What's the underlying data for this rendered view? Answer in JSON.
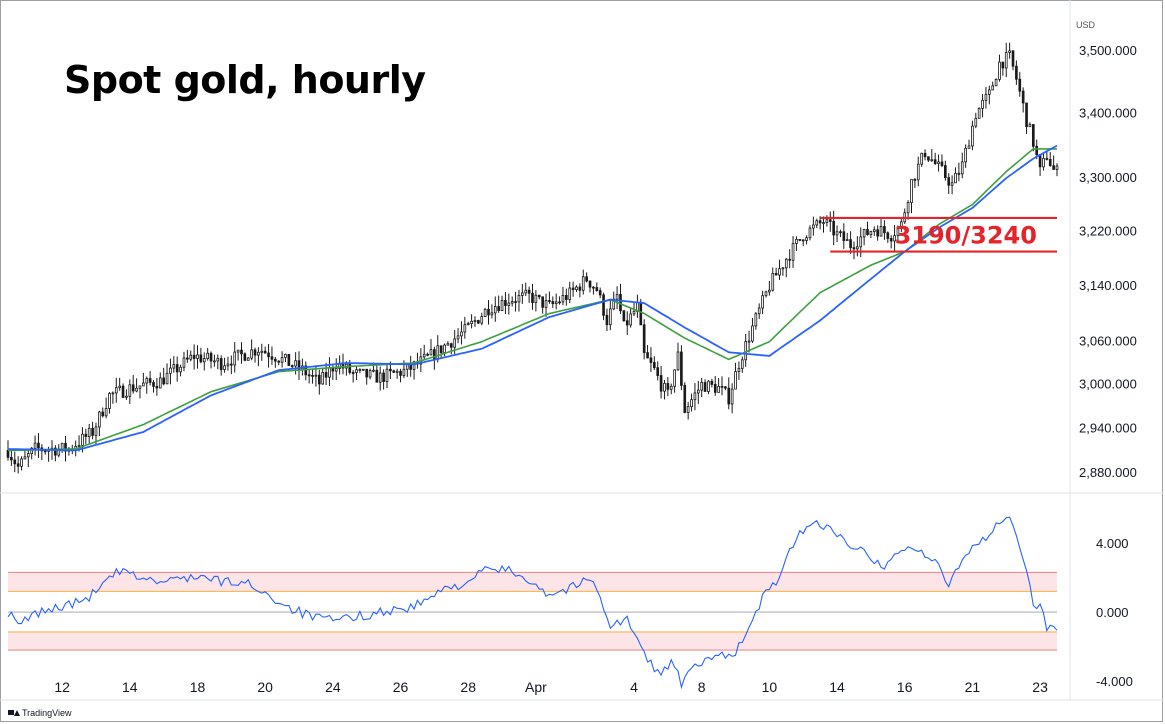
{
  "chart_data": [
    {
      "type": "candlestick",
      "title": "Spot gold, hourly",
      "unit": "USD",
      "scale": "log",
      "ylim": [
        2860,
        3560
      ],
      "y_ticks": [
        2880,
        2940,
        3000,
        3060,
        3140,
        3220,
        3300,
        3400,
        3500
      ],
      "y_tick_labels": [
        "2,880.000",
        "2,940.000",
        "3,000.000",
        "3,060.000",
        "3,140.000",
        "3,220.000",
        "3,300.000",
        "3,400.000",
        "3,500.000"
      ],
      "x_ticks": [
        {
          "label": "12",
          "bar": 16
        },
        {
          "label": "14",
          "bar": 36
        },
        {
          "label": "18",
          "bar": 56
        },
        {
          "label": "20",
          "bar": 76
        },
        {
          "label": "24",
          "bar": 96
        },
        {
          "label": "26",
          "bar": 116
        },
        {
          "label": "28",
          "bar": 136
        },
        {
          "label": "Apr",
          "bar": 156
        },
        {
          "label": "4",
          "bar": 185
        },
        {
          "label": "8",
          "bar": 205
        },
        {
          "label": "10",
          "bar": 225
        },
        {
          "label": "14",
          "bar": 245
        },
        {
          "label": "16",
          "bar": 265
        },
        {
          "label": "21",
          "bar": 285
        },
        {
          "label": "23",
          "bar": 305
        }
      ],
      "bar_count": 311,
      "price_path": [
        [
          0,
          2910
        ],
        [
          3,
          2888
        ],
        [
          8,
          2912
        ],
        [
          18,
          2912
        ],
        [
          25,
          2935
        ],
        [
          30,
          2985
        ],
        [
          36,
          2995
        ],
        [
          45,
          3005
        ],
        [
          55,
          3040
        ],
        [
          63,
          3030
        ],
        [
          74,
          3050
        ],
        [
          79,
          3040
        ],
        [
          87,
          3020
        ],
        [
          92,
          3002
        ],
        [
          97,
          3030
        ],
        [
          102,
          3015
        ],
        [
          110,
          3010
        ],
        [
          118,
          3020
        ],
        [
          125,
          3040
        ],
        [
          135,
          3075
        ],
        [
          142,
          3108
        ],
        [
          148,
          3120
        ],
        [
          154,
          3125
        ],
        [
          160,
          3110
        ],
        [
          166,
          3128
        ],
        [
          171,
          3150
        ],
        [
          174,
          3135
        ],
        [
          177,
          3090
        ],
        [
          180,
          3125
        ],
        [
          182,
          3080
        ],
        [
          186,
          3110
        ],
        [
          188,
          3040
        ],
        [
          191,
          3020
        ],
        [
          193,
          3000
        ],
        [
          195,
          2985
        ],
        [
          198,
          3040
        ],
        [
          200,
          2965
        ],
        [
          205,
          3000
        ],
        [
          210,
          2995
        ],
        [
          213,
          2982
        ],
        [
          216,
          3030
        ],
        [
          220,
          3080
        ],
        [
          225,
          3140
        ],
        [
          230,
          3180
        ],
        [
          235,
          3215
        ],
        [
          241,
          3235
        ],
        [
          245,
          3215
        ],
        [
          249,
          3200
        ],
        [
          256,
          3225
        ],
        [
          261,
          3215
        ],
        [
          264,
          3230
        ],
        [
          267,
          3295
        ],
        [
          271,
          3340
        ],
        [
          276,
          3310
        ],
        [
          279,
          3290
        ],
        [
          282,
          3320
        ],
        [
          286,
          3400
        ],
        [
          290,
          3430
        ],
        [
          293,
          3480
        ],
        [
          296,
          3490
        ],
        [
          298,
          3455
        ],
        [
          301,
          3390
        ],
        [
          303,
          3355
        ],
        [
          305,
          3310
        ],
        [
          307,
          3335
        ],
        [
          309,
          3312
        ],
        [
          310,
          3310
        ]
      ],
      "series": [
        {
          "name": "",
          "color": "#3ca03c",
          "points": [
            [
              0,
              2910
            ],
            [
              20,
              2912
            ],
            [
              40,
              2945
            ],
            [
              60,
              2990
            ],
            [
              80,
              3018
            ],
            [
              100,
              3025
            ],
            [
              120,
              3030
            ],
            [
              140,
              3060
            ],
            [
              160,
              3100
            ],
            [
              178,
              3120
            ],
            [
              188,
              3100
            ],
            [
              200,
              3065
            ],
            [
              213,
              3035
            ],
            [
              225,
              3060
            ],
            [
              240,
              3130
            ],
            [
              255,
              3170
            ],
            [
              265,
              3190
            ],
            [
              275,
              3230
            ],
            [
              285,
              3260
            ],
            [
              295,
              3310
            ],
            [
              303,
              3345
            ],
            [
              310,
              3345
            ]
          ]
        },
        {
          "name": "",
          "color": "#2962ff",
          "points": [
            [
              0,
              2912
            ],
            [
              20,
              2910
            ],
            [
              40,
              2935
            ],
            [
              60,
              2985
            ],
            [
              80,
              3020
            ],
            [
              100,
              3030
            ],
            [
              120,
              3028
            ],
            [
              140,
              3050
            ],
            [
              160,
              3095
            ],
            [
              178,
              3120
            ],
            [
              188,
              3115
            ],
            [
              200,
              3080
            ],
            [
              213,
              3045
            ],
            [
              225,
              3040
            ],
            [
              240,
              3090
            ],
            [
              255,
              3150
            ],
            [
              265,
              3190
            ],
            [
              275,
              3225
            ],
            [
              285,
              3255
            ],
            [
              295,
              3300
            ],
            [
              303,
              3330
            ],
            [
              310,
              3350
            ]
          ]
        }
      ],
      "levels": [
        {
          "value": 3240,
          "color": "#e3242b",
          "from_bar": 240,
          "to_bar": 310
        },
        {
          "value": 3190,
          "color": "#e3242b",
          "from_bar": 243,
          "to_bar": 310
        }
      ],
      "annotation": "3190/3240"
    },
    {
      "type": "line",
      "ylim": [
        -4.8,
        6.6
      ],
      "y_ticks": [
        4,
        0,
        -4
      ],
      "y_tick_labels": [
        "4.000",
        "0.000",
        "-4.000"
      ],
      "bands": {
        "outer": [
          -2.2,
          2.3
        ],
        "inner": [
          -1.15,
          1.2
        ],
        "fill": "#fde4e6",
        "outer_color": "#e57373",
        "inner_color": "#f5a623",
        "zero_color": "#9e9e9e"
      },
      "color": "#2962ff",
      "points": [
        [
          0,
          0
        ],
        [
          3,
          -0.8
        ],
        [
          8,
          -0.1
        ],
        [
          15,
          0.3
        ],
        [
          22,
          0.6
        ],
        [
          28,
          1.5
        ],
        [
          32,
          2.3
        ],
        [
          36,
          2.2
        ],
        [
          45,
          1.7
        ],
        [
          55,
          2.1
        ],
        [
          62,
          1.8
        ],
        [
          72,
          1.6
        ],
        [
          80,
          0.6
        ],
        [
          85,
          0.1
        ],
        [
          90,
          -0.3
        ],
        [
          96,
          -0.5
        ],
        [
          102,
          -0.3
        ],
        [
          110,
          0.0
        ],
        [
          120,
          0.3
        ],
        [
          128,
          1.2
        ],
        [
          136,
          1.8
        ],
        [
          142,
          2.5
        ],
        [
          148,
          2.4
        ],
        [
          154,
          1.9
        ],
        [
          160,
          1.0
        ],
        [
          166,
          1.4
        ],
        [
          172,
          1.9
        ],
        [
          175,
          1.0
        ],
        [
          178,
          -0.8
        ],
        [
          183,
          -0.4
        ],
        [
          186,
          -1.7
        ],
        [
          189,
          -2.8
        ],
        [
          193,
          -3.6
        ],
        [
          196,
          -2.8
        ],
        [
          199,
          -4.1
        ],
        [
          203,
          -3.2
        ],
        [
          210,
          -2.5
        ],
        [
          215,
          -2.3
        ],
        [
          219,
          -1.0
        ],
        [
          223,
          0.8
        ],
        [
          227,
          1.8
        ],
        [
          231,
          3.4
        ],
        [
          235,
          4.8
        ],
        [
          239,
          5.1
        ],
        [
          243,
          5.0
        ],
        [
          247,
          4.0
        ],
        [
          253,
          3.8
        ],
        [
          258,
          2.5
        ],
        [
          262,
          3.3
        ],
        [
          266,
          3.8
        ],
        [
          270,
          3.5
        ],
        [
          275,
          2.6
        ],
        [
          278,
          1.5
        ],
        [
          281,
          2.8
        ],
        [
          285,
          3.8
        ],
        [
          290,
          4.5
        ],
        [
          295,
          5.6
        ],
        [
          298,
          4.5
        ],
        [
          301,
          2.4
        ],
        [
          303,
          0.3
        ],
        [
          305,
          0.5
        ],
        [
          307,
          -0.8
        ],
        [
          310,
          -1.0
        ]
      ]
    }
  ],
  "branding": {
    "text": "TradingView"
  }
}
